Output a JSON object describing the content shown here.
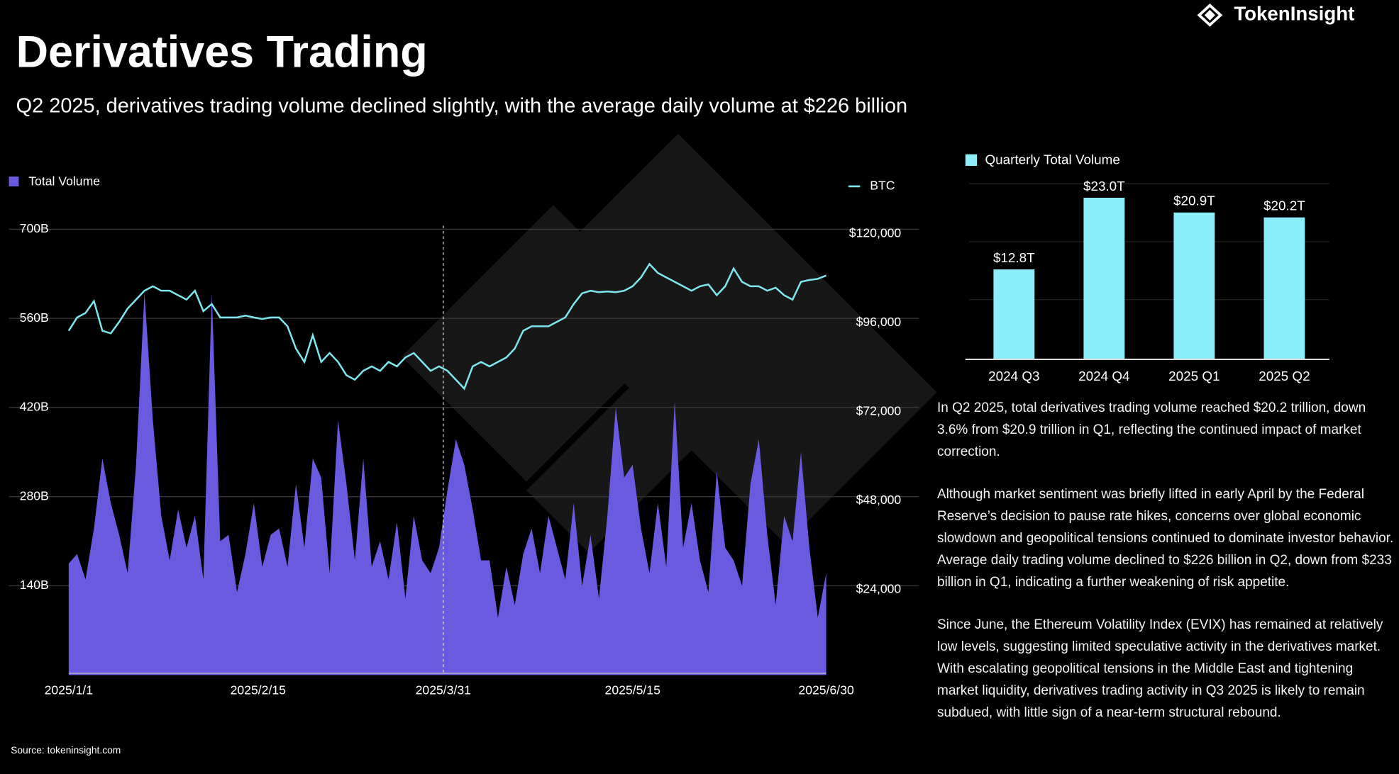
{
  "brand": "TokenInsight",
  "title": "Derivatives Trading",
  "subtitle": "Q2 2025, derivatives trading volume declined slightly, with the average daily volume at $226 billion",
  "source": "Source: tokeninsight.com",
  "paragraphs": [
    "In Q2 2025, total derivatives trading volume reached $20.2 trillion, down 3.6% from $20.9 trillion in Q1, reflecting the continued impact of market correction.",
    "Although market sentiment was briefly lifted in early April by the Federal Reserve’s decision to pause rate hikes, concerns over global economic slowdown and geopolitical tensions continued to dominate investor behavior. Average daily trading volume declined to $226 billion in Q2, down from $233 billion in Q1, indicating a further weakening of risk appetite.",
    "Since June, the Ethereum Volatility Index (EVIX) has remained at relatively low levels, suggesting limited speculative activity in the derivatives market. With escalating geopolitical tensions in the Middle East and tightening market liquidity, derivatives trading activity in Q3 2025 is likely to remain subdued, with little sign of a near-term structural rebound."
  ],
  "chart_data": [
    {
      "type": "combo",
      "x": [
        "2025/1/1",
        "2025/1/3",
        "2025/1/5",
        "2025/1/7",
        "2025/1/9",
        "2025/1/11",
        "2025/1/13",
        "2025/1/15",
        "2025/1/17",
        "2025/1/19",
        "2025/1/21",
        "2025/1/23",
        "2025/1/25",
        "2025/1/27",
        "2025/1/29",
        "2025/1/31",
        "2025/2/2",
        "2025/2/4",
        "2025/2/6",
        "2025/2/8",
        "2025/2/10",
        "2025/2/12",
        "2025/2/14",
        "2025/2/16",
        "2025/2/18",
        "2025/2/20",
        "2025/2/22",
        "2025/2/24",
        "2025/2/26",
        "2025/2/28",
        "2025/3/2",
        "2025/3/4",
        "2025/3/6",
        "2025/3/8",
        "2025/3/10",
        "2025/3/12",
        "2025/3/14",
        "2025/3/16",
        "2025/3/18",
        "2025/3/20",
        "2025/3/22",
        "2025/3/24",
        "2025/3/26",
        "2025/3/28",
        "2025/3/30",
        "2025/4/1",
        "2025/4/3",
        "2025/4/5",
        "2025/4/7",
        "2025/4/9",
        "2025/4/11",
        "2025/4/13",
        "2025/4/15",
        "2025/4/17",
        "2025/4/19",
        "2025/4/21",
        "2025/4/23",
        "2025/4/25",
        "2025/4/27",
        "2025/4/29",
        "2025/5/1",
        "2025/5/3",
        "2025/5/5",
        "2025/5/7",
        "2025/5/9",
        "2025/5/11",
        "2025/5/13",
        "2025/5/15",
        "2025/5/17",
        "2025/5/19",
        "2025/5/21",
        "2025/5/23",
        "2025/5/25",
        "2025/5/27",
        "2025/5/29",
        "2025/5/31",
        "2025/6/2",
        "2025/6/4",
        "2025/6/6",
        "2025/6/8",
        "2025/6/10",
        "2025/6/12",
        "2025/6/14",
        "2025/6/16",
        "2025/6/18",
        "2025/6/20",
        "2025/6/22",
        "2025/6/24",
        "2025/6/26",
        "2025/6/28",
        "2025/6/30"
      ],
      "series": [
        {
          "name": "Total Volume",
          "color": "#6a5ae0",
          "type": "area",
          "values": [
            175,
            190,
            150,
            230,
            340,
            270,
            220,
            160,
            330,
            600,
            400,
            250,
            180,
            260,
            200,
            250,
            150,
            600,
            210,
            220,
            130,
            190,
            270,
            170,
            220,
            230,
            170,
            300,
            200,
            340,
            310,
            160,
            400,
            300,
            180,
            340,
            170,
            210,
            150,
            240,
            120,
            250,
            180,
            160,
            200,
            290,
            370,
            330,
            260,
            180,
            180,
            90,
            170,
            110,
            190,
            230,
            160,
            250,
            200,
            150,
            270,
            140,
            220,
            120,
            250,
            420,
            310,
            330,
            230,
            160,
            270,
            170,
            430,
            200,
            270,
            180,
            130,
            320,
            200,
            180,
            140,
            300,
            370,
            220,
            110,
            250,
            210,
            350,
            200,
            90,
            160
          ]
        },
        {
          "name": "BTC",
          "color": "#7ee6ee",
          "type": "line",
          "axis": "y2",
          "values": [
            93800,
            97400,
            98600,
            101800,
            93800,
            93100,
            96200,
            99800,
            102200,
            104600,
            105800,
            104600,
            104600,
            103400,
            102200,
            104600,
            99100,
            101000,
            97400,
            97400,
            97400,
            97900,
            97400,
            97000,
            97400,
            97400,
            95000,
            89000,
            85400,
            92600,
            85400,
            87800,
            85400,
            81800,
            80600,
            83000,
            84200,
            83000,
            85400,
            84200,
            86600,
            87800,
            85400,
            83000,
            84200,
            83000,
            80600,
            78200,
            84200,
            85400,
            84200,
            85400,
            86600,
            89000,
            93800,
            95000,
            95000,
            95000,
            96200,
            97400,
            101000,
            103900,
            104600,
            104200,
            104400,
            104200,
            104600,
            105800,
            108200,
            111800,
            109400,
            108200,
            107000,
            105800,
            104600,
            105800,
            106300,
            103400,
            105800,
            110600,
            107000,
            105800,
            105800,
            104600,
            105400,
            103400,
            102200,
            107000,
            107500,
            107800,
            108700
          ]
        }
      ],
      "xlim": [
        "2025/1/1",
        "2025/6/30"
      ],
      "xticks": [
        "2025/1/1",
        "2025/2/15",
        "2025/3/31",
        "2025/5/15",
        "2025/6/30"
      ],
      "ylim": [
        0,
        700
      ],
      "yticks": [
        {
          "value": 140,
          "label": "140B"
        },
        {
          "value": 280,
          "label": "280B"
        },
        {
          "value": 420,
          "label": "420B"
        },
        {
          "value": 560,
          "label": "560B"
        },
        {
          "value": 700,
          "label": "700B"
        }
      ],
      "y2lim": [
        0,
        120000
      ],
      "y2ticks": [
        {
          "value": 24000,
          "label": "$24,000"
        },
        {
          "value": 48000,
          "label": "$48,000"
        },
        {
          "value": 72000,
          "label": "$72,000"
        },
        {
          "value": 96000,
          "label": "$96,000"
        },
        {
          "value": 120000,
          "label": "$120,000"
        }
      ],
      "vline_x": "2025/3/31",
      "grid": true
    },
    {
      "type": "bar",
      "categories": [
        "2024 Q3",
        "2024 Q4",
        "2025 Q1",
        "2025 Q2"
      ],
      "series": [
        {
          "name": "Quarterly Total Volume",
          "color": "#8ceef8",
          "values": [
            12.8,
            23.0,
            20.9,
            20.2
          ],
          "value_labels": [
            "$12.8T",
            "$23.0T",
            "$20.9T",
            "$20.2T"
          ]
        }
      ],
      "ylim": [
        0,
        25
      ]
    }
  ]
}
